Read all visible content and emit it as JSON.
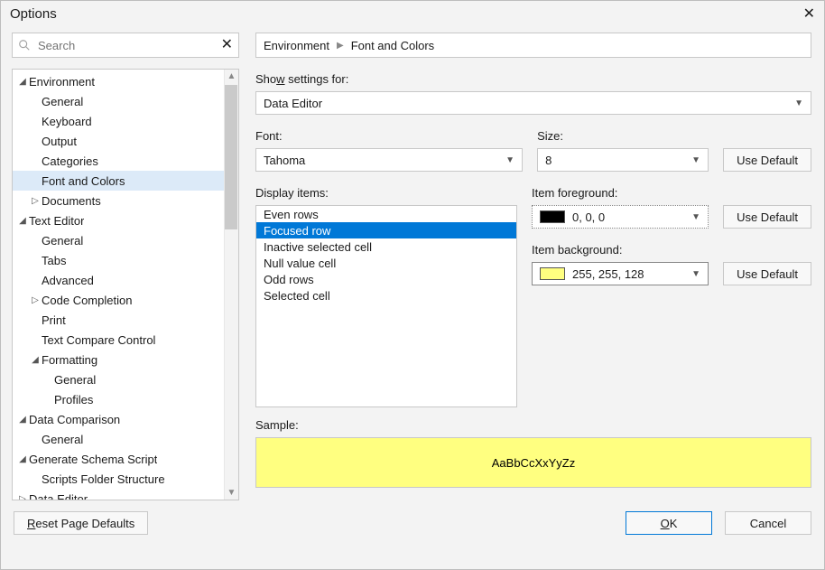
{
  "window": {
    "title": "Options"
  },
  "search": {
    "placeholder": "Search"
  },
  "breadcrumb": {
    "a": "Environment",
    "b": "Font and Colors"
  },
  "tree": [
    {
      "lv": 0,
      "tw": "▲",
      "label": "Environment"
    },
    {
      "lv": 1,
      "tw": "",
      "label": "General"
    },
    {
      "lv": 1,
      "tw": "",
      "label": "Keyboard"
    },
    {
      "lv": 1,
      "tw": "",
      "label": "Output"
    },
    {
      "lv": 1,
      "tw": "",
      "label": "Categories"
    },
    {
      "lv": 1,
      "tw": "",
      "label": "Font and Colors",
      "sel": true
    },
    {
      "lv": 1,
      "tw": "▶",
      "label": "Documents"
    },
    {
      "lv": 0,
      "tw": "◢",
      "label": "Text Editor"
    },
    {
      "lv": 1,
      "tw": "",
      "label": "General"
    },
    {
      "lv": 1,
      "tw": "",
      "label": "Tabs"
    },
    {
      "lv": 1,
      "tw": "",
      "label": "Advanced"
    },
    {
      "lv": 1,
      "tw": "▶",
      "label": "Code Completion"
    },
    {
      "lv": 1,
      "tw": "",
      "label": "Print"
    },
    {
      "lv": 1,
      "tw": "",
      "label": "Text Compare Control"
    },
    {
      "lv": 1,
      "tw": "◢",
      "label": "Formatting"
    },
    {
      "lv": 2,
      "tw": "",
      "label": "General"
    },
    {
      "lv": 2,
      "tw": "",
      "label": "Profiles"
    },
    {
      "lv": 0,
      "tw": "◢",
      "label": "Data Comparison"
    },
    {
      "lv": 1,
      "tw": "",
      "label": "General"
    },
    {
      "lv": 0,
      "tw": "◢",
      "label": "Generate Schema Script"
    },
    {
      "lv": 1,
      "tw": "",
      "label": "Scripts Folder Structure"
    },
    {
      "lv": 0,
      "tw": "▶",
      "label": "Data Editor"
    }
  ],
  "right": {
    "showSettings": {
      "label_pre": "Sho",
      "label_ul": "w",
      "label_post": " settings for:",
      "value": "Data Editor"
    },
    "font": {
      "label_ul": "F",
      "label_post": "ont:",
      "value": "Tahoma"
    },
    "size": {
      "label_ul": "S",
      "label_post": "ize:",
      "value": "8"
    },
    "displayItems": {
      "label_ul": "D",
      "label_post": "isplay items:",
      "items": [
        {
          "t": "Even rows"
        },
        {
          "t": "Focused row",
          "sel": true
        },
        {
          "t": "Inactive selected cell"
        },
        {
          "t": "Null value cell"
        },
        {
          "t": "Odd rows"
        },
        {
          "t": "Selected cell"
        }
      ]
    },
    "foreground": {
      "label": "Item foreground:",
      "label_fg_pre": "Item fo",
      "label_ul": "r",
      "label_post": "eground:",
      "value": "0, 0, 0",
      "swatch": "#000000"
    },
    "background": {
      "label_pre": "Item bac",
      "label_ul": "k",
      "label_post": "ground:",
      "value": "255, 255, 128",
      "swatch": "#ffff80"
    },
    "useDefault": "Use Default",
    "sample": {
      "label_pre": "Sa",
      "label_ul": "m",
      "label_post": "ple:",
      "text": "AaBbCcXxYyZz",
      "bg": "#ffff80",
      "fg": "#000000"
    }
  },
  "footer": {
    "reset_ul": "R",
    "reset_post": "eset Page Defaults",
    "ok_ul": "O",
    "ok_post": "K",
    "cancel": "Cancel"
  },
  "colors": {
    "selection": "#dceaf8",
    "list_sel": "#0078d7",
    "border": "#c8c8c8",
    "bg": "#f3f3f3"
  }
}
